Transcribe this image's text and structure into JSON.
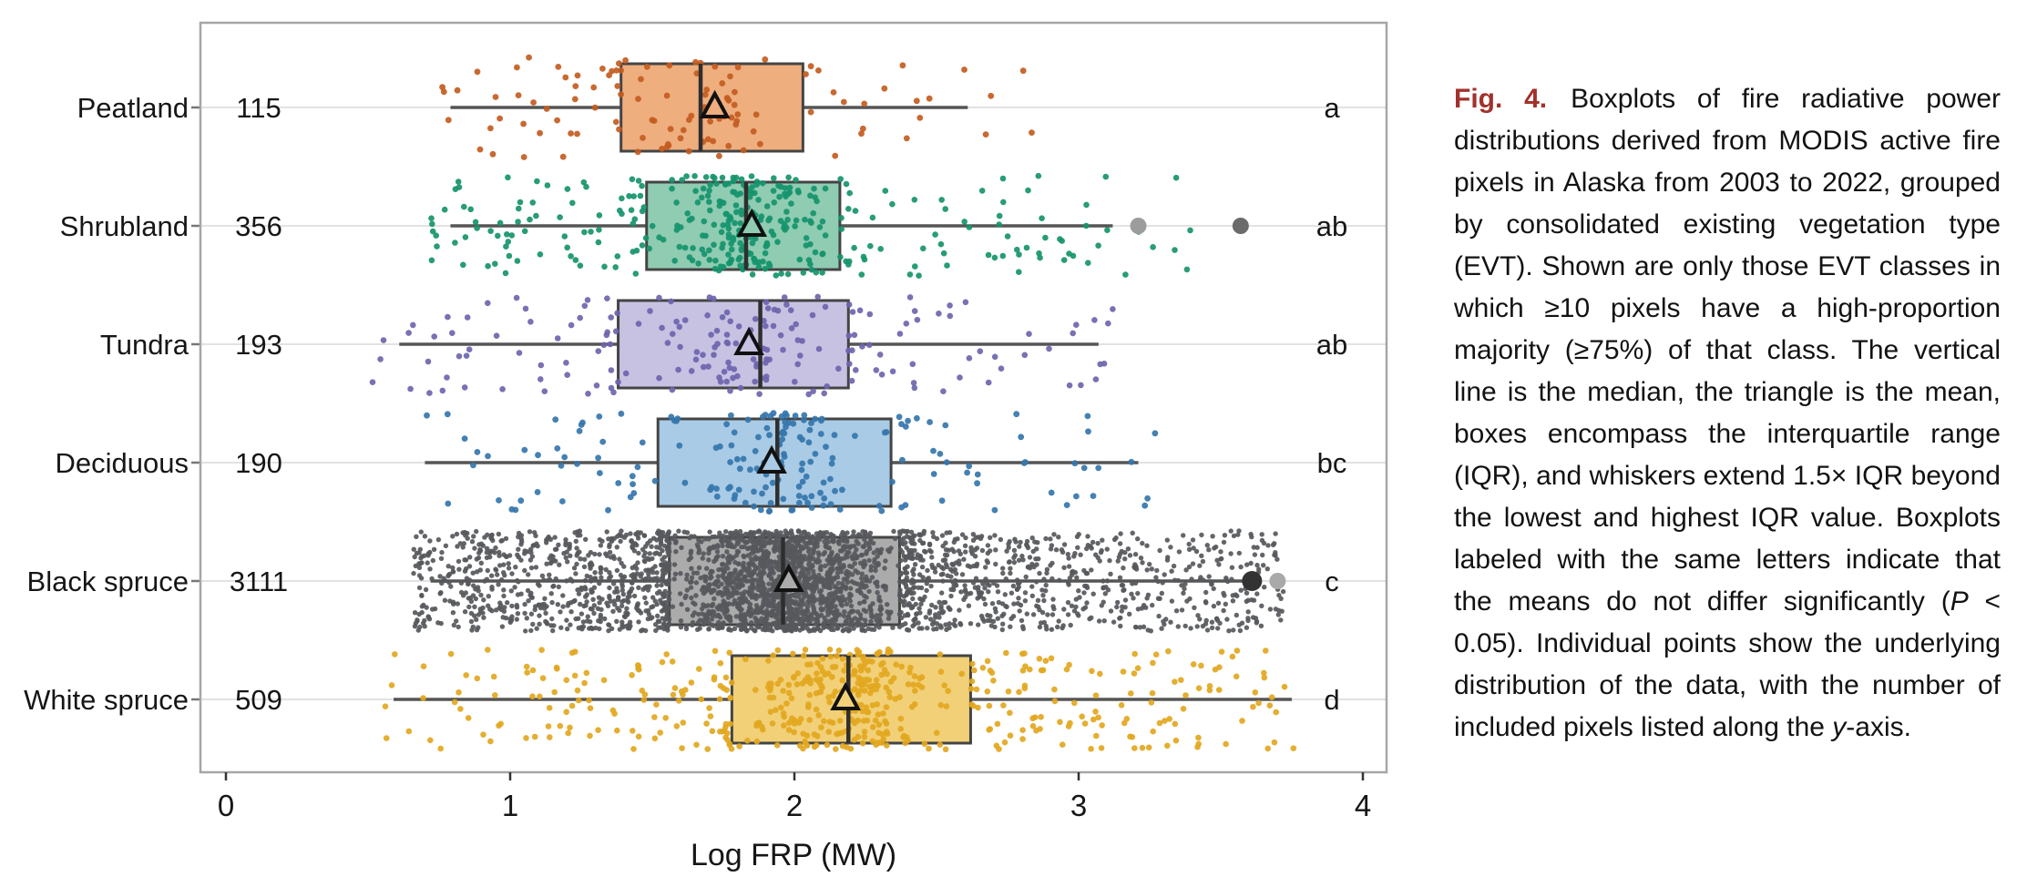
{
  "figure": {
    "caption_label": "Fig. 4.",
    "caption_segments": [
      {
        "style": "normal",
        "text": "Boxplots of fire radiative power distributions derived from MODIS active fire pixels in Alaska from 2003 to 2022, grouped by consolidated existing vegetation type (EVT). Shown are only those EVT classes in which ≥10 pixels have a high-proportion majority (≥75%) of that class. The vertical line is the median, the triangle is the mean, boxes encompass the interquartile range (IQR), and whiskers extend 1.5× IQR beyond the lowest and highest IQR value. Boxplots labeled with the same letters indicate that the means do not differ significantly ("
      },
      {
        "style": "italic",
        "text": "P"
      },
      {
        "style": "normal",
        "text": " < 0.05). Individual points show the underlying distribution of the data, with the number of included pixels listed along the "
      },
      {
        "style": "italic",
        "text": "y"
      },
      {
        "style": "normal",
        "text": "-axis."
      }
    ]
  },
  "chart_data": {
    "type": "boxplot",
    "orientation": "horizontal",
    "title": "",
    "xlabel": "Log FRP (MW)",
    "ylabel": "",
    "xlim": [
      -0.09,
      4.08
    ],
    "xticks": [
      0,
      1,
      2,
      3,
      4
    ],
    "grid": "horizontal-row-gridlines",
    "legend_position": "none",
    "colors": {
      "box_border": "#444444",
      "whisker": "#555555",
      "median": "#2f2f2f",
      "mean_triangle_stroke": "#111111",
      "gridline": "#e2e2e2",
      "panel_border": "#a6a6a6",
      "text": "#161616",
      "caption_label_red": "#a2312b"
    },
    "categories": [
      "Peatland",
      "Shrubland",
      "Tundra",
      "Deciduous",
      "Black spruce",
      "White spruce"
    ],
    "series": [
      {
        "label": "Peatland",
        "n": 115,
        "letter": "a",
        "whisker_low": 0.79,
        "q1": 1.39,
        "median": 1.67,
        "mean": 1.72,
        "q3": 2.03,
        "whisker_high": 2.61,
        "jitter_min": 0.74,
        "jitter_max": 2.92,
        "outliers": [],
        "box_fill": "#efae7e",
        "dot_color": "#c35c21",
        "dot_r": 3.4,
        "seed": 11
      },
      {
        "label": "Shrubland",
        "n": 356,
        "letter": "ab",
        "whisker_low": 0.79,
        "q1": 1.48,
        "median": 1.83,
        "mean": 1.85,
        "q3": 2.16,
        "whisker_high": 3.12,
        "jitter_min": 0.72,
        "jitter_max": 3.45,
        "outliers": [
          {
            "x": 3.21,
            "color": "#9c9c9c",
            "r": 9
          },
          {
            "x": 3.57,
            "color": "#6b6b6b",
            "r": 9
          }
        ],
        "box_fill": "#8fccb2",
        "dot_color": "#16946c",
        "dot_r": 3.3,
        "seed": 22
      },
      {
        "label": "Tundra",
        "n": 193,
        "letter": "ab",
        "whisker_low": 0.61,
        "q1": 1.38,
        "median": 1.88,
        "mean": 1.84,
        "q3": 2.19,
        "whisker_high": 3.07,
        "jitter_min": 0.5,
        "jitter_max": 3.12,
        "outliers": [],
        "box_fill": "#c7c2e2",
        "dot_color": "#6d65ae",
        "dot_r": 3.3,
        "seed": 33
      },
      {
        "label": "Deciduous",
        "n": 190,
        "letter": "bc",
        "whisker_low": 0.7,
        "q1": 1.52,
        "median": 1.94,
        "mean": 1.92,
        "q3": 2.34,
        "whisker_high": 3.21,
        "jitter_min": 0.63,
        "jitter_max": 3.27,
        "outliers": [],
        "box_fill": "#a9cbe6",
        "dot_color": "#3576ad",
        "dot_r": 3.4,
        "seed": 44
      },
      {
        "label": "Black spruce",
        "n": 3111,
        "letter": "c",
        "whisker_low": 0.72,
        "q1": 1.56,
        "median": 1.96,
        "mean": 1.98,
        "q3": 2.37,
        "whisker_high": 3.58,
        "jitter_min": 0.66,
        "jitter_max": 3.72,
        "outliers": [
          {
            "x": 3.61,
            "color": "#333333",
            "r": 11
          },
          {
            "x": 3.7,
            "color": "#a9a9a9",
            "r": 9
          }
        ],
        "box_fill": "#ababab",
        "dot_color": "#56585c",
        "dot_r": 2.7,
        "seed": 55
      },
      {
        "label": "White spruce",
        "n": 509,
        "letter": "d",
        "whisker_low": 0.59,
        "q1": 1.78,
        "median": 2.19,
        "mean": 2.18,
        "q3": 2.62,
        "whisker_high": 3.75,
        "jitter_min": 0.55,
        "jitter_max": 3.76,
        "outliers": [],
        "box_fill": "#f2d078",
        "dot_color": "#e2a71f",
        "dot_r": 3.3,
        "seed": 66
      }
    ]
  }
}
